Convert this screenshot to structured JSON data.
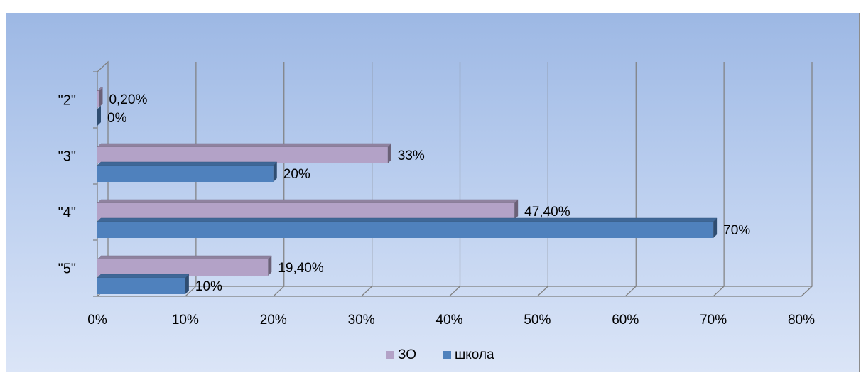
{
  "chart_data": {
    "type": "bar",
    "orientation": "horizontal",
    "categories": [
      "\"2\"",
      "\"3\"",
      "\"4\"",
      "\"5\""
    ],
    "series": [
      {
        "name": "ЗО",
        "color": "#b3a2c7",
        "values": [
          0.2,
          33,
          47.4,
          19.4
        ],
        "labels": [
          "0,20%",
          "33%",
          "47,40%",
          "19,40%"
        ]
      },
      {
        "name": "школа",
        "color": "#4f81bd",
        "values": [
          0,
          20,
          70,
          10
        ],
        "labels": [
          "0%",
          "20%",
          "70%",
          "10%"
        ]
      }
    ],
    "xlim": [
      0,
      80
    ],
    "x_ticks": [
      "0%",
      "10%",
      "20%",
      "30%",
      "40%",
      "50%",
      "60%",
      "70%",
      "80%"
    ],
    "grid": true,
    "legend_position": "bottom",
    "three_d": true
  }
}
